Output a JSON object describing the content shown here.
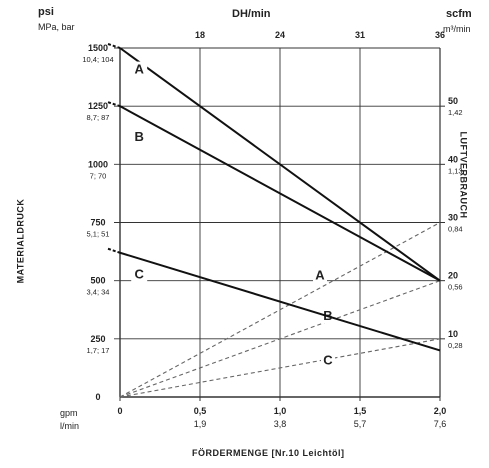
{
  "chart_data": {
    "type": "line",
    "title": "",
    "top_axis": {
      "label": "DH/min",
      "ticks": [
        "18",
        "24",
        "31",
        "36"
      ]
    },
    "left_axis": {
      "unit_primary": "psi",
      "unit_secondary": "MPa, bar",
      "label": "MATERIALDRUCK",
      "range_psi": [
        0,
        1500
      ],
      "ticks": [
        {
          "psi": 1500,
          "text": "1500",
          "sub": "10,4; 104"
        },
        {
          "psi": 1250,
          "text": "1250",
          "sub": "8,7; 87"
        },
        {
          "psi": 1000,
          "text": "1000",
          "sub": "7; 70"
        },
        {
          "psi": 750,
          "text": "750",
          "sub": "5,1; 51"
        },
        {
          "psi": 500,
          "text": "500",
          "sub": "3,4; 34"
        },
        {
          "psi": 250,
          "text": "250",
          "sub": "1,7; 17"
        },
        {
          "psi": 0,
          "text": "0",
          "sub": ""
        }
      ]
    },
    "right_axis": {
      "unit_primary": "scfm",
      "unit_secondary": "m³/min",
      "label": "LUFTVERBRAUCH",
      "range_scfm": [
        0,
        60
      ],
      "ticks": [
        {
          "scfm": 50,
          "text": "50",
          "sub": "1,42"
        },
        {
          "scfm": 40,
          "text": "40",
          "sub": "1,13"
        },
        {
          "scfm": 30,
          "text": "30",
          "sub": "0,84"
        },
        {
          "scfm": 20,
          "text": "20",
          "sub": "0,56"
        },
        {
          "scfm": 10,
          "text": "10",
          "sub": "0,28"
        }
      ]
    },
    "bottom_axis": {
      "label": "FÖRDERMENGE [Nr.10 Leichtöl]",
      "row1_unit": "gpm",
      "row2_unit": "l/min",
      "range_gpm": [
        0,
        2.0
      ],
      "ticks": [
        {
          "gpm": 0,
          "text": "0",
          "sub": ""
        },
        {
          "gpm": 0.5,
          "text": "0,5",
          "sub": "1,9"
        },
        {
          "gpm": 1.0,
          "text": "1,0",
          "sub": "3,8"
        },
        {
          "gpm": 1.5,
          "text": "1,5",
          "sub": "5,7"
        },
        {
          "gpm": 2.0,
          "text": "2,0",
          "sub": "7,6"
        }
      ]
    },
    "grid": true,
    "pressure_series": [
      {
        "name": "A",
        "x": [
          0,
          2.0
        ],
        "y_psi": [
          1500,
          500
        ],
        "label_at": [
          0.12,
          1390
        ]
      },
      {
        "name": "B",
        "x": [
          0,
          2.0
        ],
        "y_psi": [
          1250,
          500
        ],
        "label_at": [
          0.12,
          1100
        ]
      },
      {
        "name": "C",
        "x": [
          0,
          2.0
        ],
        "y_psi": [
          620,
          200
        ],
        "label_at": [
          0.12,
          510
        ]
      }
    ],
    "air_series": [
      {
        "name": "A",
        "x": [
          0,
          2.0
        ],
        "y_scfm": [
          0,
          30
        ],
        "label_at": [
          1.25,
          506
        ]
      },
      {
        "name": "B",
        "x": [
          0,
          2.0
        ],
        "y_scfm": [
          0,
          20
        ],
        "label_at": [
          1.3,
          330
        ]
      },
      {
        "name": "C",
        "x": [
          0,
          2.0
        ],
        "y_scfm": [
          0,
          10
        ],
        "label_at": [
          1.3,
          140
        ]
      }
    ]
  }
}
